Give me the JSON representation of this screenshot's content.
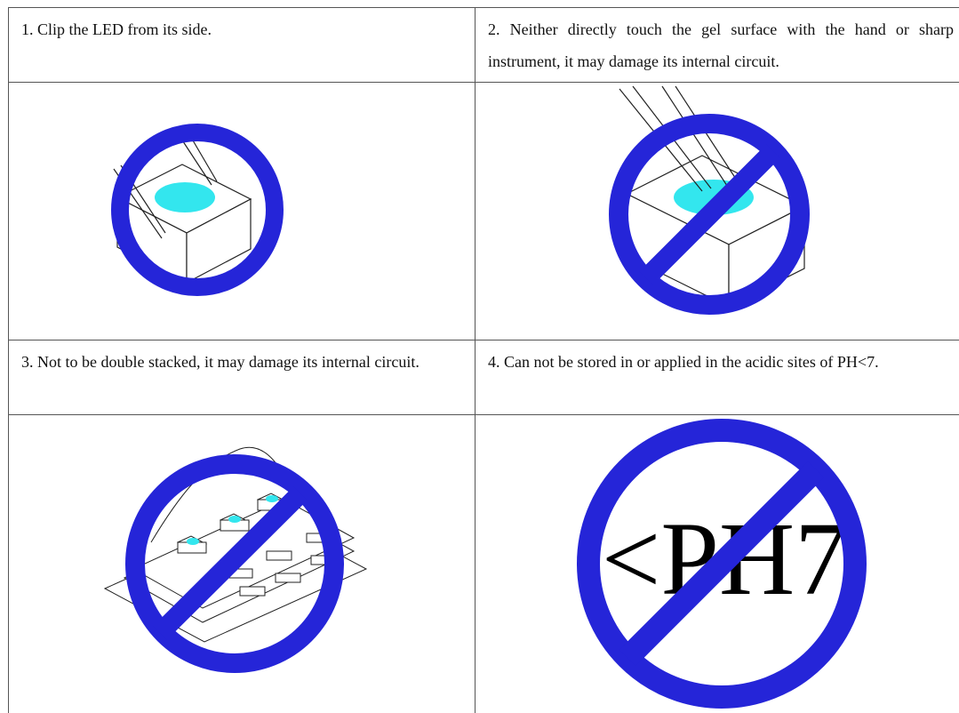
{
  "instructions": [
    "1.  Clip the LED from its side.",
    "2.  Neither directly touch the gel surface with the hand or sharp instrument, it may damage its internal circuit.",
    "3. Not to be double stacked, it may damage its internal circuit.",
    "4.  Can not be stored in or applied in the acidic sites of PH<7."
  ],
  "illustration_text": "<PH7"
}
